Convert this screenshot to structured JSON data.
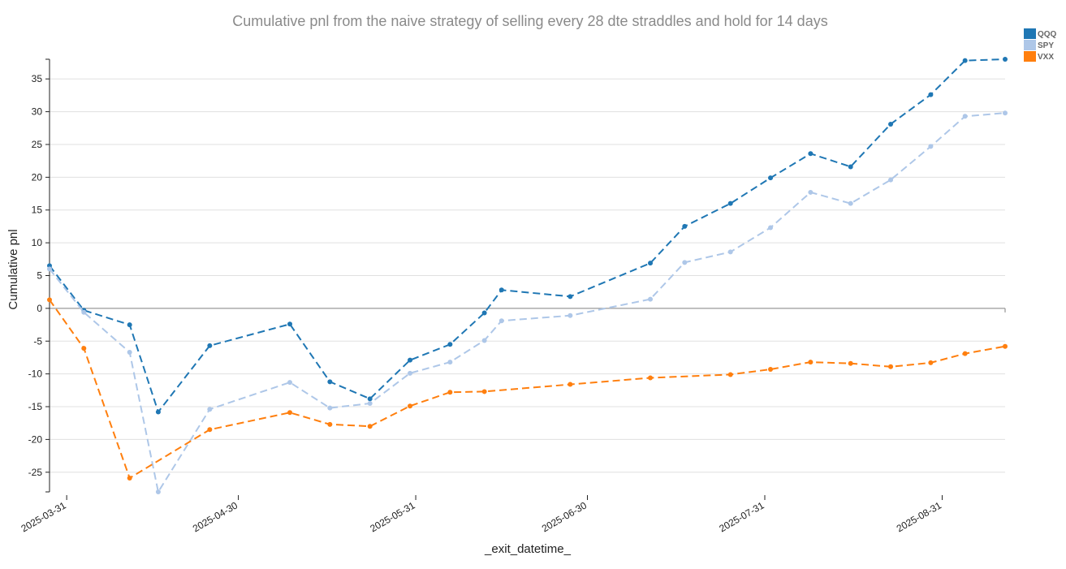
{
  "chart_data": {
    "type": "line",
    "title": "Cumulative pnl from the naive strategy of selling every 28 dte straddles and hold for 14 days",
    "xlabel": "_exit_datetime_",
    "ylabel": "Cumulative pnl",
    "xlim": [
      "2025-03-28",
      "2025-09-11"
    ],
    "ylim": [
      -28,
      38
    ],
    "x_ticks": [
      "2025-03-31",
      "2025-04-30",
      "2025-05-31",
      "2025-06-30",
      "2025-07-31",
      "2025-08-31"
    ],
    "y_ticks": [
      35,
      30,
      25,
      20,
      15,
      10,
      5,
      0,
      -5,
      -10,
      -15,
      -20,
      -25
    ],
    "grid": true,
    "legend_position": "top-right",
    "series": [
      {
        "name": "QQQ",
        "color": "#1f77b4",
        "points": [
          [
            "2025-03-28",
            6.5
          ],
          [
            "2025-04-03",
            -0.3
          ],
          [
            "2025-04-11",
            -2.5
          ],
          [
            "2025-04-16",
            -15.8
          ],
          [
            "2025-04-25",
            -5.7
          ],
          [
            "2025-05-09",
            -2.4
          ],
          [
            "2025-05-16",
            -11.2
          ],
          [
            "2025-05-23",
            -13.8
          ],
          [
            "2025-05-30",
            -7.9
          ],
          [
            "2025-06-06",
            -5.5
          ],
          [
            "2025-06-12",
            -0.7
          ],
          [
            "2025-06-15",
            2.8
          ],
          [
            "2025-06-27",
            1.8
          ],
          [
            "2025-07-11",
            6.9
          ],
          [
            "2025-07-17",
            12.5
          ],
          [
            "2025-07-25",
            16.0
          ],
          [
            "2025-08-01",
            19.9
          ],
          [
            "2025-08-08",
            23.6
          ],
          [
            "2025-08-15",
            21.6
          ],
          [
            "2025-08-22",
            28.1
          ],
          [
            "2025-08-29",
            32.6
          ],
          [
            "2025-09-04",
            37.8
          ],
          [
            "2025-09-11",
            38.0
          ]
        ]
      },
      {
        "name": "SPY",
        "color": "#aec7e8",
        "points": [
          [
            "2025-03-28",
            6.0
          ],
          [
            "2025-04-03",
            -0.6
          ],
          [
            "2025-04-11",
            -6.7
          ],
          [
            "2025-04-16",
            -28.0
          ],
          [
            "2025-04-25",
            -15.4
          ],
          [
            "2025-05-09",
            -11.3
          ],
          [
            "2025-05-16",
            -15.2
          ],
          [
            "2025-05-23",
            -14.5
          ],
          [
            "2025-05-30",
            -9.9
          ],
          [
            "2025-06-06",
            -8.2
          ],
          [
            "2025-06-12",
            -4.9
          ],
          [
            "2025-06-15",
            -1.9
          ],
          [
            "2025-06-27",
            -1.1
          ],
          [
            "2025-07-11",
            1.4
          ],
          [
            "2025-07-17",
            7.0
          ],
          [
            "2025-07-25",
            8.6
          ],
          [
            "2025-08-01",
            12.3
          ],
          [
            "2025-08-08",
            17.7
          ],
          [
            "2025-08-15",
            16.0
          ],
          [
            "2025-08-22",
            19.6
          ],
          [
            "2025-08-29",
            24.7
          ],
          [
            "2025-09-04",
            29.3
          ],
          [
            "2025-09-11",
            29.8
          ]
        ]
      },
      {
        "name": "VXX",
        "color": "#ff7f0e",
        "points": [
          [
            "2025-03-28",
            1.3
          ],
          [
            "2025-04-03",
            -6.1
          ],
          [
            "2025-04-11",
            -25.9
          ],
          [
            "2025-04-25",
            -18.5
          ],
          [
            "2025-05-09",
            -15.9
          ],
          [
            "2025-05-16",
            -17.7
          ],
          [
            "2025-05-23",
            -18.0
          ],
          [
            "2025-05-30",
            -14.9
          ],
          [
            "2025-06-06",
            -12.8
          ],
          [
            "2025-06-12",
            -12.7
          ],
          [
            "2025-06-27",
            -11.6
          ],
          [
            "2025-07-11",
            -10.6
          ],
          [
            "2025-07-25",
            -10.1
          ],
          [
            "2025-08-01",
            -9.3
          ],
          [
            "2025-08-08",
            -8.2
          ],
          [
            "2025-08-15",
            -8.4
          ],
          [
            "2025-08-22",
            -8.9
          ],
          [
            "2025-08-29",
            -8.3
          ],
          [
            "2025-09-04",
            -6.9
          ],
          [
            "2025-09-11",
            -5.8
          ]
        ]
      }
    ]
  }
}
